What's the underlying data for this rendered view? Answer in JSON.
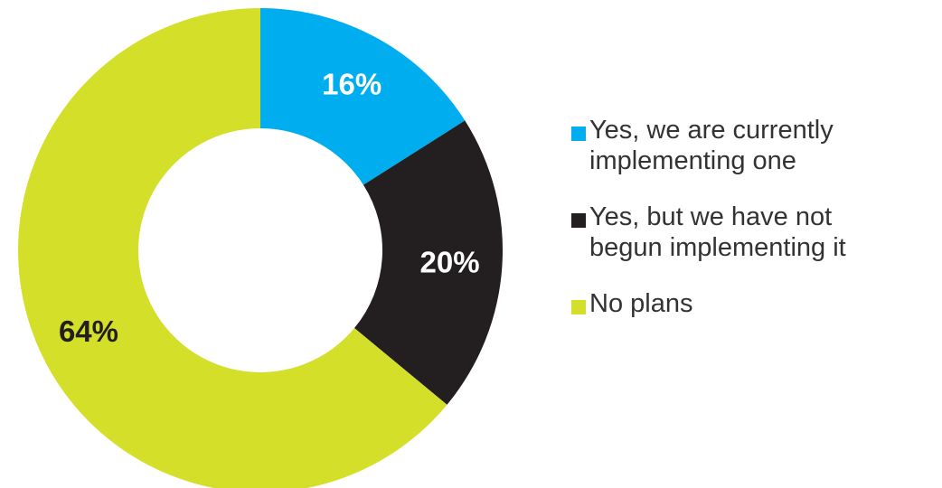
{
  "chart_data": {
    "type": "pie",
    "donut": true,
    "title": "",
    "legend_position": "right",
    "slices": [
      {
        "label": "Yes, we are currently\nimplementing one",
        "value": 16,
        "display": "16%",
        "color": "#00AEEF",
        "label_color": "#ffffff"
      },
      {
        "label": "Yes, but we have not\nbegun implementing it",
        "value": 20,
        "display": "20%",
        "color": "#231F20",
        "label_color": "#ffffff"
      },
      {
        "label": "No plans",
        "value": 64,
        "display": "64%",
        "color": "#D4DF2A",
        "label_color": "#231F20"
      }
    ]
  }
}
